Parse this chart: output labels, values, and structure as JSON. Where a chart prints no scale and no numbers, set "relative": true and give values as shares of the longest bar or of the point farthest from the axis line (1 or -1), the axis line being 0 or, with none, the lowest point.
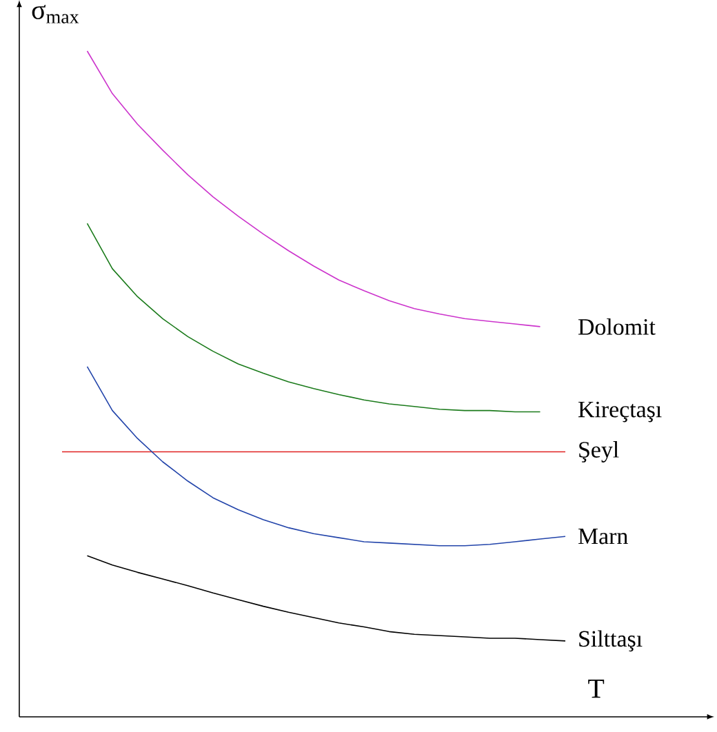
{
  "chart_data": {
    "type": "line",
    "relative": true,
    "xlabel": "T",
    "ylabel": "σ$_{max}$",
    "legend": false,
    "line_style": "solid",
    "categories": [
      null,
      null,
      null,
      null,
      null,
      null,
      null,
      null,
      null,
      null,
      null,
      null,
      null,
      null,
      null,
      null,
      null,
      null,
      null,
      null,
      null
    ],
    "series": [
      {
        "name": "Dolomit",
        "color": "#cc33cc",
        "values": [
          null,
          1.0,
          0.936,
          0.89,
          0.851,
          0.814,
          0.781,
          0.752,
          0.725,
          0.7,
          0.677,
          0.656,
          0.64,
          0.625,
          0.613,
          0.605,
          0.598,
          0.594,
          0.59,
          0.586,
          null
        ]
      },
      {
        "name": "Kireçtaşı",
        "color": "#1a7a1a",
        "values": [
          null,
          0.741,
          0.673,
          0.631,
          0.598,
          0.571,
          0.549,
          0.53,
          0.516,
          0.503,
          0.493,
          0.484,
          0.476,
          0.47,
          0.466,
          0.462,
          0.46,
          0.46,
          0.458,
          0.458,
          null
        ]
      },
      {
        "name": "Şeyl",
        "color": "#e02020",
        "values": [
          0.398,
          0.398,
          0.398,
          0.398,
          0.398,
          0.398,
          0.398,
          0.398,
          0.398,
          0.398,
          0.398,
          0.398,
          0.398,
          0.398,
          0.398,
          0.398,
          0.398,
          0.398,
          0.398,
          0.398,
          0.398
        ]
      },
      {
        "name": "Marn",
        "color": "#2244aa",
        "values": [
          null,
          0.526,
          0.46,
          0.418,
          0.383,
          0.354,
          0.329,
          0.311,
          0.296,
          0.284,
          0.275,
          0.269,
          0.263,
          0.261,
          0.259,
          0.257,
          0.257,
          0.259,
          0.263,
          0.267,
          0.271
        ]
      },
      {
        "name": "Silttaşı",
        "color": "#000000",
        "values": [
          null,
          0.242,
          0.228,
          0.217,
          0.207,
          0.197,
          0.186,
          0.176,
          0.166,
          0.157,
          0.149,
          0.141,
          0.135,
          0.128,
          0.124,
          0.122,
          0.12,
          0.118,
          0.118,
          0.116,
          0.114
        ]
      }
    ]
  }
}
